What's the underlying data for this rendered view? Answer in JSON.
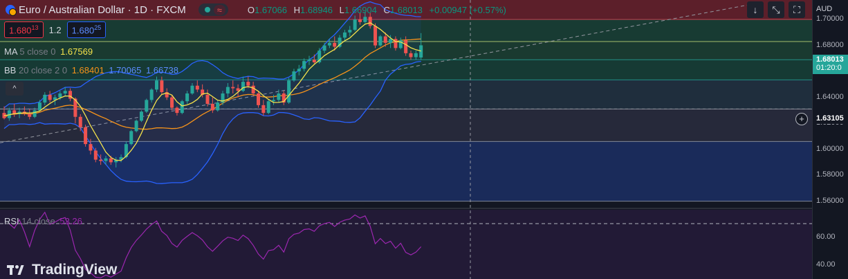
{
  "header": {
    "title": "Euro / Australian Dollar · 1D · FXCM",
    "o_label": "O",
    "o": "1.67066",
    "h_label": "H",
    "h": "1.68946",
    "l_label": "L",
    "l": "1.66904",
    "c_label": "C",
    "c": "1.68013",
    "change": "+0.00947 (+0.57%)",
    "wave": "≈"
  },
  "quote": {
    "bid_main": "1.680",
    "bid_sup": "13",
    "spread": "1.2",
    "ask_main": "1.680",
    "ask_sup": "25"
  },
  "indicators": {
    "ma": {
      "name": "MA",
      "params": "5 close 0",
      "value": "1.67569"
    },
    "bb": {
      "name": "BB",
      "params": "20 close 2 0",
      "basis": "1.68401",
      "upper": "1.70065",
      "lower": "1.66738"
    },
    "rsi": {
      "name": "RSI",
      "params": "14 close",
      "value": "53.26"
    }
  },
  "toolbar": {
    "down": "↓",
    "expand": "⤡",
    "fullscreen": "⛶",
    "collapse": "^"
  },
  "axis": {
    "currency": "AUD",
    "price_ticks": [
      "1.70000",
      "1.68000",
      "1.66000",
      "1.64000",
      "1.62000",
      "1.60000",
      "1.58000",
      "1.56000"
    ],
    "rsi_ticks": [
      "60.00",
      "40.00"
    ],
    "current_price": "1.68013",
    "countdown": "01:20:0",
    "crosshair_price": "1.63105"
  },
  "logo": {
    "text": "TradingView"
  },
  "colors": {
    "up": "#26a69a",
    "down": "#ef5350",
    "ma": "#f5e34b",
    "bb_basis": "#f7931a",
    "bb_band": "#2962ff",
    "rsi": "#9c27b0"
  },
  "chart_data": {
    "type": "candlestick",
    "symbol": "EURAUD",
    "timeframe": "1D",
    "ylim": [
      1.555,
      1.715
    ],
    "rsi_ylim": [
      30,
      80
    ],
    "zones": [
      {
        "from": 1.7,
        "to": 1.715,
        "color": "#5c1f2a"
      },
      {
        "from": 1.683,
        "to": 1.7,
        "color": "#183b33"
      },
      {
        "from": 1.669,
        "to": 1.683,
        "color": "#1a3a30"
      },
      {
        "from": 1.6535,
        "to": 1.669,
        "color": "#163a34"
      },
      {
        "from": 1.631,
        "to": 1.6535,
        "color": "#1f2e3d"
      },
      {
        "from": 1.606,
        "to": 1.631,
        "color": "#26293a"
      },
      {
        "from": 1.56,
        "to": 1.606,
        "color": "#1a2b5a"
      }
    ],
    "levels": [
      1.7,
      1.683,
      1.669,
      1.6535,
      1.631,
      1.606,
      1.56
    ],
    "candles": [
      [
        1.628,
        1.633,
        1.623,
        1.624
      ],
      [
        1.624,
        1.632,
        1.622,
        1.63
      ],
      [
        1.63,
        1.635,
        1.625,
        1.627
      ],
      [
        1.627,
        1.632,
        1.624,
        1.629
      ],
      [
        1.629,
        1.633,
        1.626,
        1.6275
      ],
      [
        1.6275,
        1.631,
        1.623,
        1.625
      ],
      [
        1.625,
        1.632,
        1.624,
        1.63
      ],
      [
        1.63,
        1.638,
        1.629,
        1.636
      ],
      [
        1.636,
        1.644,
        1.634,
        1.642
      ],
      [
        1.642,
        1.645,
        1.636,
        1.638
      ],
      [
        1.638,
        1.642,
        1.634,
        1.64
      ],
      [
        1.64,
        1.645,
        1.638,
        1.643
      ],
      [
        1.643,
        1.648,
        1.641,
        1.645
      ],
      [
        1.645,
        1.647,
        1.637,
        1.639
      ],
      [
        1.639,
        1.64,
        1.62,
        1.625
      ],
      [
        1.625,
        1.627,
        1.614,
        1.617
      ],
      [
        1.617,
        1.619,
        1.602,
        1.604
      ],
      [
        1.604,
        1.608,
        1.596,
        1.599
      ],
      [
        1.599,
        1.601,
        1.59,
        1.592
      ],
      [
        1.592,
        1.596,
        1.588,
        1.591
      ],
      [
        1.591,
        1.595,
        1.588,
        1.593
      ],
      [
        1.593,
        1.595,
        1.588,
        1.59
      ],
      [
        1.59,
        1.594,
        1.586,
        1.592
      ],
      [
        1.592,
        1.596,
        1.59,
        1.594
      ],
      [
        1.594,
        1.606,
        1.593,
        1.604
      ],
      [
        1.604,
        1.615,
        1.603,
        1.614
      ],
      [
        1.614,
        1.623,
        1.613,
        1.622
      ],
      [
        1.622,
        1.63,
        1.621,
        1.629
      ],
      [
        1.629,
        1.639,
        1.628,
        1.638
      ],
      [
        1.638,
        1.647,
        1.636,
        1.646
      ],
      [
        1.646,
        1.656,
        1.644,
        1.653
      ],
      [
        1.653,
        1.656,
        1.642,
        1.644
      ],
      [
        1.644,
        1.647,
        1.638,
        1.64
      ],
      [
        1.64,
        1.642,
        1.63,
        1.632
      ],
      [
        1.632,
        1.633,
        1.626,
        1.628
      ],
      [
        1.628,
        1.638,
        1.627,
        1.637
      ],
      [
        1.637,
        1.645,
        1.635,
        1.643
      ],
      [
        1.643,
        1.651,
        1.642,
        1.649
      ],
      [
        1.649,
        1.653,
        1.644,
        1.646
      ],
      [
        1.646,
        1.65,
        1.64,
        1.642
      ],
      [
        1.642,
        1.646,
        1.633,
        1.635
      ],
      [
        1.635,
        1.64,
        1.628,
        1.63
      ],
      [
        1.63,
        1.638,
        1.629,
        1.636
      ],
      [
        1.636,
        1.645,
        1.634,
        1.643
      ],
      [
        1.643,
        1.651,
        1.64,
        1.648
      ],
      [
        1.648,
        1.653,
        1.643,
        1.647
      ],
      [
        1.647,
        1.65,
        1.64,
        1.645
      ],
      [
        1.645,
        1.656,
        1.644,
        1.652
      ],
      [
        1.652,
        1.656,
        1.647,
        1.649
      ],
      [
        1.649,
        1.652,
        1.641,
        1.643
      ],
      [
        1.643,
        1.645,
        1.632,
        1.634
      ],
      [
        1.634,
        1.638,
        1.626,
        1.628
      ],
      [
        1.628,
        1.638,
        1.627,
        1.637
      ],
      [
        1.637,
        1.642,
        1.634,
        1.638
      ],
      [
        1.638,
        1.646,
        1.636,
        1.643
      ],
      [
        1.643,
        1.645,
        1.634,
        1.636
      ],
      [
        1.636,
        1.655,
        1.635,
        1.653
      ],
      [
        1.653,
        1.662,
        1.652,
        1.66
      ],
      [
        1.66,
        1.665,
        1.657,
        1.662
      ],
      [
        1.662,
        1.67,
        1.66,
        1.668
      ],
      [
        1.668,
        1.672,
        1.665,
        1.669
      ],
      [
        1.669,
        1.673,
        1.666,
        1.667
      ],
      [
        1.667,
        1.678,
        1.666,
        1.676
      ],
      [
        1.676,
        1.682,
        1.674,
        1.68
      ],
      [
        1.68,
        1.685,
        1.678,
        1.682
      ],
      [
        1.682,
        1.687,
        1.676,
        1.679
      ],
      [
        1.679,
        1.688,
        1.678,
        1.686
      ],
      [
        1.686,
        1.692,
        1.683,
        1.69
      ],
      [
        1.69,
        1.695,
        1.687,
        1.692
      ],
      [
        1.692,
        1.703,
        1.691,
        1.7
      ],
      [
        1.7,
        1.705,
        1.696,
        1.698
      ],
      [
        1.698,
        1.706,
        1.697,
        1.702
      ],
      [
        1.702,
        1.705,
        1.693,
        1.695
      ],
      [
        1.695,
        1.697,
        1.678,
        1.68
      ],
      [
        1.68,
        1.688,
        1.679,
        1.687
      ],
      [
        1.687,
        1.69,
        1.679,
        1.682
      ],
      [
        1.682,
        1.688,
        1.678,
        1.685
      ],
      [
        1.685,
        1.687,
        1.676,
        1.678
      ],
      [
        1.678,
        1.686,
        1.677,
        1.684
      ],
      [
        1.684,
        1.687,
        1.672,
        1.674
      ],
      [
        1.674,
        1.676,
        1.669,
        1.671
      ],
      [
        1.671,
        1.676,
        1.669,
        1.674
      ],
      [
        1.6707,
        1.6895,
        1.669,
        1.6801
      ]
    ],
    "ma5": [
      1.626,
      1.6265,
      1.6275,
      1.6278,
      1.6281,
      1.6279,
      1.6283,
      1.6295,
      1.6325,
      1.6352,
      1.6376,
      1.6395,
      1.6411,
      1.641,
      1.638,
      1.6331,
      1.626,
      1.6182,
      1.6114,
      1.6047,
      1.5978,
      1.5937,
      1.5916,
      1.5914,
      1.5946,
      1.5992,
      1.6047,
      1.6123,
      1.6215,
      1.63,
      1.6376,
      1.6422,
      1.6434,
      1.6418,
      1.6366,
      1.6334,
      1.6342,
      1.6358,
      1.6384,
      1.6426,
      1.6432,
      1.6406,
      1.6378,
      1.6372,
      1.6385,
      1.6408,
      1.644,
      1.6475,
      1.6483,
      1.6472,
      1.6447,
      1.6413,
      1.6384,
      1.636,
      1.6361,
      1.6368,
      1.6415,
      1.6463,
      1.6509,
      1.6563,
      1.6617,
      1.6654,
      1.6686,
      1.6722,
      1.6746,
      1.677,
      1.6806,
      1.6836,
      1.6858,
      1.6894,
      1.6932,
      1.6964,
      1.6974,
      1.695,
      1.6924,
      1.689,
      1.6857,
      1.6829,
      1.6827,
      1.6807,
      1.6782,
      1.6767,
      1.6757
    ]
  }
}
